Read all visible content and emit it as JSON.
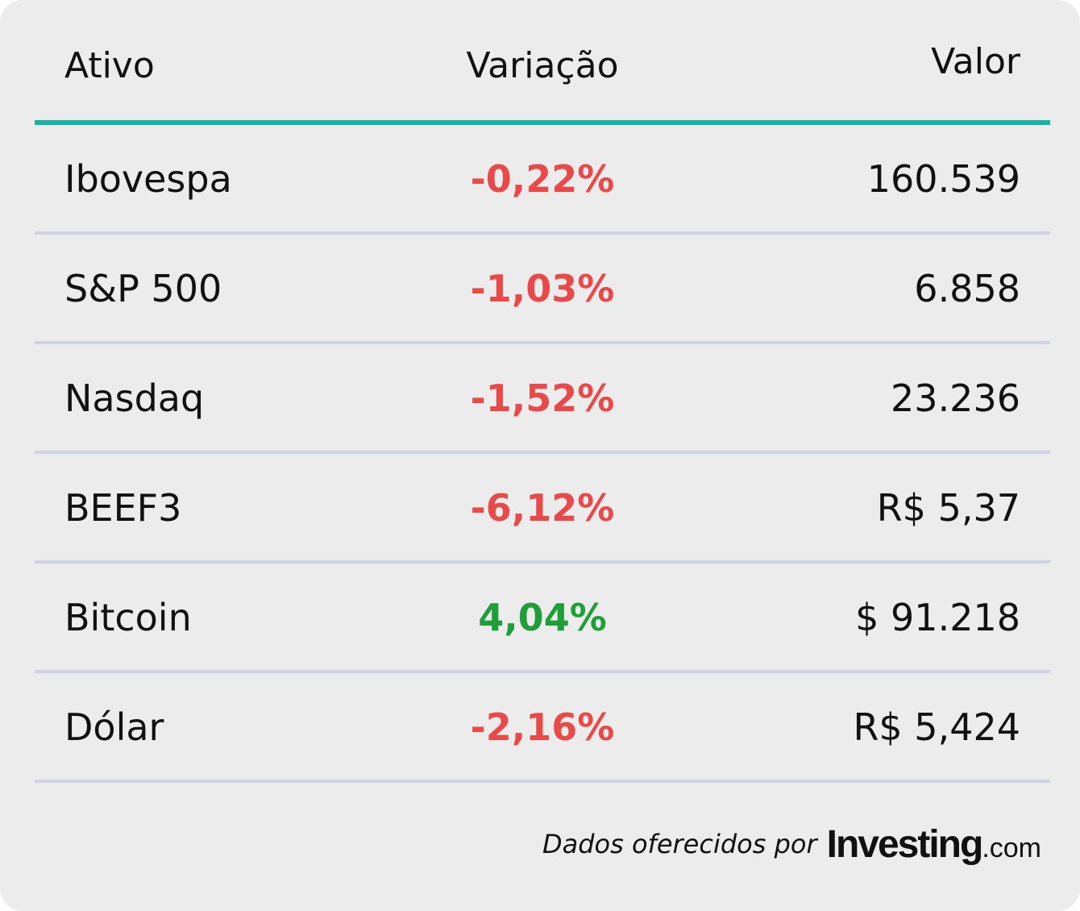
{
  "header": {
    "col_asset": "Ativo",
    "col_change": "Variação",
    "col_value": "Valor"
  },
  "rows": [
    {
      "asset": "Ibovespa",
      "change": "-0,22%",
      "value": "160.539",
      "trend": "down"
    },
    {
      "asset": "S&P 500",
      "change": "-1,03%",
      "value": "6.858",
      "trend": "down"
    },
    {
      "asset": "Nasdaq",
      "change": "-1,52%",
      "value": "23.236",
      "trend": "down"
    },
    {
      "asset": "BEEF3",
      "change": "-6,12%",
      "value": "R$ 5,37",
      "trend": "down"
    },
    {
      "asset": "Bitcoin",
      "change": "4,04%",
      "value": "$ 91.218",
      "trend": "up"
    },
    {
      "asset": "Dólar",
      "change": "-2,16%",
      "value": "R$ 5,424",
      "trend": "down"
    }
  ],
  "footer": {
    "lead": "Dados oferecidos por",
    "logo_brand": "Investing",
    "logo_tld": ".com"
  },
  "colors": {
    "accent": "#13b5a6",
    "negative": "#e84a4a",
    "positive": "#1f9e3a",
    "background": "#ececec",
    "divider": "#cfd3e0"
  }
}
